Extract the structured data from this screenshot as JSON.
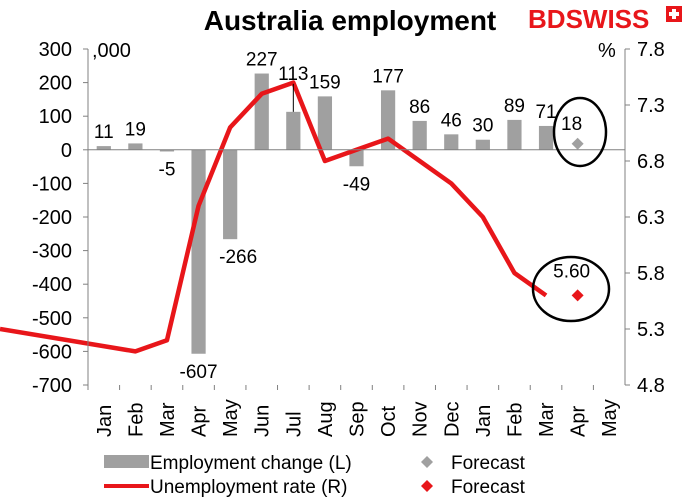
{
  "colors": {
    "bar": "#a0a0a0",
    "bar_forecast": "#a0a0a0",
    "line": "#e8161a",
    "line_forecast": "#e8161a",
    "logo_red": "#e8161a",
    "axis": "#808080"
  },
  "logo": {
    "text_part1": "BD",
    "text_part2": "SWISS"
  },
  "chart_data": {
    "type": "bar+line",
    "title": "Australia employment",
    "left_axis_unit": ",000",
    "right_axis_unit": "%",
    "categories": [
      "Jan",
      "Feb",
      "Mar",
      "Apr",
      "May",
      "Jun",
      "Jul",
      "Aug",
      "Sep",
      "Oct",
      "Nov",
      "Dec",
      "Jan",
      "Feb",
      "Mar",
      "Apr",
      "May"
    ],
    "left_ticks": [
      "300",
      "200",
      "100",
      "0",
      "-100",
      "-200",
      "-300",
      "-400",
      "-500",
      "-600",
      "-700"
    ],
    "right_ticks": [
      "7.8",
      "7.3",
      "6.8",
      "6.3",
      "5.8",
      "5.3",
      "4.8"
    ],
    "ylim_left": [
      -700,
      300
    ],
    "ylim_right": [
      4.8,
      7.8
    ],
    "employment_change": {
      "name": "Employment change (L)",
      "values": [
        11,
        19,
        -5,
        -607,
        -266,
        227,
        113,
        159,
        -49,
        177,
        86,
        46,
        30,
        89,
        71
      ],
      "labels": [
        "11",
        "19",
        "-5",
        "-607",
        "-266",
        "227",
        "113",
        "159",
        "-49",
        "177",
        "86",
        "46",
        "30",
        "89",
        "71"
      ]
    },
    "employment_forecast": {
      "name": "Forecast",
      "category_index": 15,
      "value": 18,
      "label": "18"
    },
    "unemployment_rate": {
      "name": "Unemployment rate (R)",
      "values": [
        5.3,
        5.1,
        5.2,
        6.4,
        7.1,
        7.4,
        7.5,
        6.8,
        6.9,
        7.0,
        6.8,
        6.6,
        6.3,
        5.8,
        5.6
      ]
    },
    "unemployment_forecast": {
      "name": "Forecast",
      "category_index": 15,
      "value": 5.6,
      "label": "5.60"
    }
  }
}
